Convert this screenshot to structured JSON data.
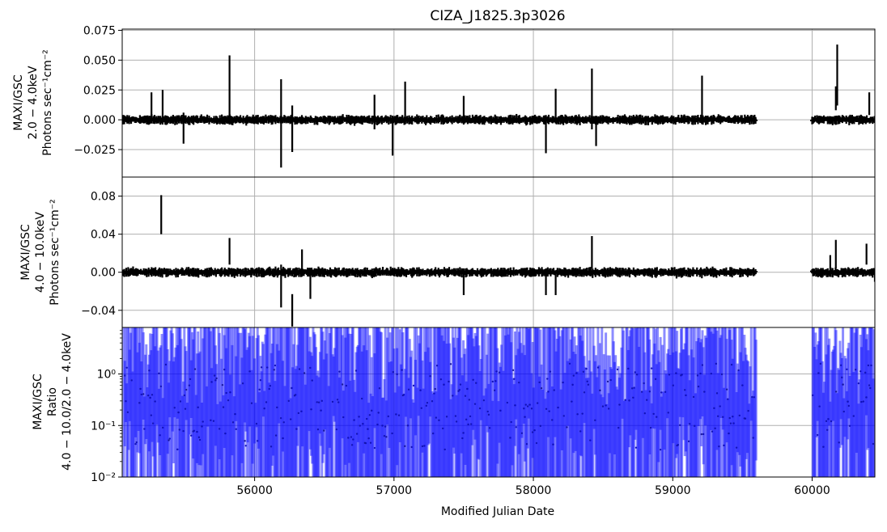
{
  "chart_data": {
    "type": "scatter",
    "title": "CIZA_J1825.3p3026",
    "xlabel": "Modified Julian Date",
    "xlim": [
      55050,
      60450
    ],
    "x_ticks": [
      "56000",
      "57000",
      "58000",
      "59000",
      "60000"
    ],
    "x_tick_values": [
      56000,
      57000,
      58000,
      59000,
      60000
    ],
    "grid": true,
    "panels": [
      {
        "name": "soft",
        "ylabel_lines": [
          "MAXI/GSC",
          "2.0 − 4.0keV",
          "Photons sec⁻¹cm⁻²"
        ],
        "ylim": [
          -0.048,
          0.076
        ],
        "yscale": "linear",
        "y_ticks": [
          "0.075",
          "0.050",
          "0.025",
          "0.000",
          "−0.025"
        ],
        "y_tick_values": [
          0.075,
          0.05,
          0.025,
          0.0,
          -0.025
        ],
        "color": "#000000",
        "spikes": [
          {
            "x": 55260,
            "lo": -0.002,
            "hi": 0.023
          },
          {
            "x": 55340,
            "lo": -0.004,
            "hi": 0.025
          },
          {
            "x": 55490,
            "lo": -0.02,
            "hi": 0.006
          },
          {
            "x": 55820,
            "lo": -0.004,
            "hi": 0.054
          },
          {
            "x": 56190,
            "lo": -0.04,
            "hi": 0.034
          },
          {
            "x": 56270,
            "lo": -0.027,
            "hi": 0.012
          },
          {
            "x": 56860,
            "lo": -0.008,
            "hi": 0.021
          },
          {
            "x": 56990,
            "lo": -0.03,
            "hi": 0.0
          },
          {
            "x": 57080,
            "lo": -0.002,
            "hi": 0.032
          },
          {
            "x": 57500,
            "lo": -0.004,
            "hi": 0.02
          },
          {
            "x": 58090,
            "lo": -0.028,
            "hi": 0.004
          },
          {
            "x": 58160,
            "lo": 0.0,
            "hi": 0.026
          },
          {
            "x": 58420,
            "lo": -0.008,
            "hi": 0.043
          },
          {
            "x": 58450,
            "lo": -0.022,
            "hi": 0.002
          },
          {
            "x": 59210,
            "lo": 0.002,
            "hi": 0.037
          },
          {
            "x": 60180,
            "lo": 0.012,
            "hi": 0.063
          },
          {
            "x": 60170,
            "lo": 0.008,
            "hi": 0.028
          },
          {
            "x": 60410,
            "lo": 0.004,
            "hi": 0.023
          }
        ]
      },
      {
        "name": "hard",
        "ylabel_lines": [
          "MAXI/GSC",
          "4.0 − 10.0keV",
          "Photons sec⁻¹cm⁻²"
        ],
        "ylim": [
          -0.058,
          0.1
        ],
        "yscale": "linear",
        "y_ticks": [
          "0.08",
          "0.04",
          "0.00",
          "−0.04"
        ],
        "y_tick_values": [
          0.08,
          0.04,
          0.0,
          -0.04
        ],
        "color": "#000000",
        "spikes": [
          {
            "x": 55330,
            "lo": 0.04,
            "hi": 0.081
          },
          {
            "x": 55820,
            "lo": 0.008,
            "hi": 0.036
          },
          {
            "x": 56190,
            "lo": -0.037,
            "hi": 0.008
          },
          {
            "x": 56270,
            "lo": -0.057,
            "hi": -0.023
          },
          {
            "x": 56340,
            "lo": 0.002,
            "hi": 0.024
          },
          {
            "x": 56400,
            "lo": -0.028,
            "hi": 0.0
          },
          {
            "x": 57500,
            "lo": -0.024,
            "hi": 0.004
          },
          {
            "x": 58090,
            "lo": -0.024,
            "hi": 0.004
          },
          {
            "x": 58160,
            "lo": -0.024,
            "hi": 0.002
          },
          {
            "x": 58420,
            "lo": 0.004,
            "hi": 0.038
          },
          {
            "x": 60170,
            "lo": 0.004,
            "hi": 0.034
          },
          {
            "x": 60130,
            "lo": 0.002,
            "hi": 0.018
          },
          {
            "x": 60390,
            "lo": 0.008,
            "hi": 0.03
          },
          {
            "x": 60450,
            "lo": -0.01,
            "hi": 0.004
          }
        ]
      },
      {
        "name": "ratio",
        "ylabel_lines": [
          "MAXI/GSC",
          "Ratio",
          "4.0 − 10.0/2.0 − 4.0keV"
        ],
        "ylim": [
          0.01,
          8
        ],
        "yscale": "log",
        "y_ticks": [
          "10⁰",
          "10⁻¹",
          "10⁻²"
        ],
        "y_tick_values": [
          1,
          0.1,
          0.01
        ],
        "color": "#0000ff"
      }
    ],
    "data_gaps": [
      [
        59600,
        60000
      ]
    ],
    "data_ranges": [
      [
        55058,
        59600
      ],
      [
        60000,
        60450
      ]
    ]
  }
}
